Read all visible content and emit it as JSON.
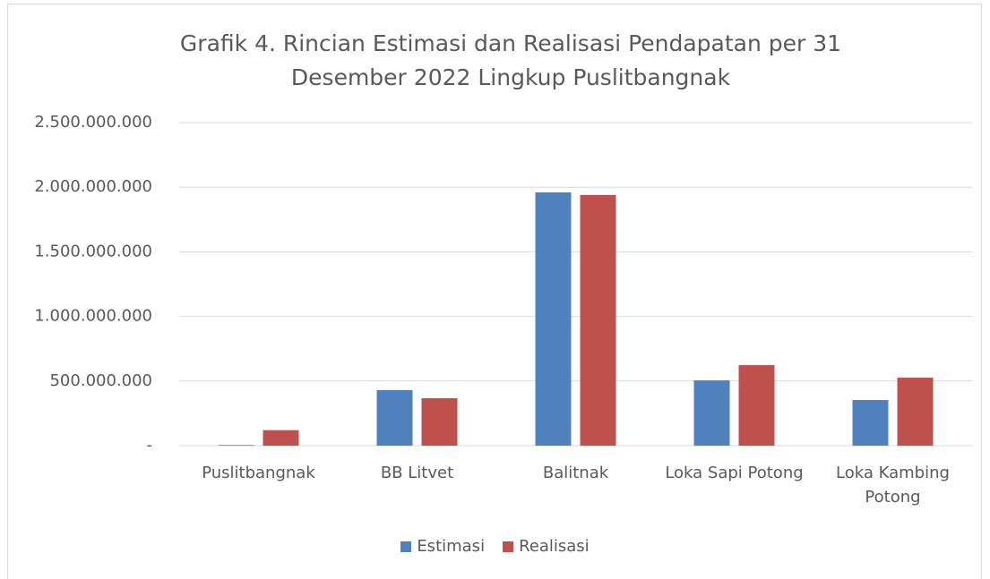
{
  "chart_data": {
    "type": "bar",
    "title": "Grafik 4. Rincian Estimasi dan Realisasi Pendapatan per 31 Desember 2022 Lingkup Puslitbangnak",
    "categories": [
      "Puslitbangnak",
      "BB Litvet",
      "Balitnak",
      "Loka Sapi Potong",
      "Loka Kambing Potong"
    ],
    "series": [
      {
        "name": "Estimasi",
        "color": "#4f81bd",
        "values": [
          5000000,
          430000000,
          1960000000,
          505000000,
          353000000
        ]
      },
      {
        "name": "Realisasi",
        "color": "#c0504d",
        "values": [
          120000000,
          367000000,
          1940000000,
          623000000,
          526000000
        ]
      }
    ],
    "ylim": [
      0,
      2500000000
    ],
    "yticks": [
      {
        "value": 0,
        "label": "-"
      },
      {
        "value": 500000000,
        "label": "500.000.000"
      },
      {
        "value": 1000000000,
        "label": "1.000.000.000"
      },
      {
        "value": 1500000000,
        "label": "1.500.000.000"
      },
      {
        "value": 2000000000,
        "label": "2.000.000.000"
      },
      {
        "value": 2500000000,
        "label": "2.500.000.000"
      }
    ],
    "grid": true,
    "legend": "bottom"
  }
}
